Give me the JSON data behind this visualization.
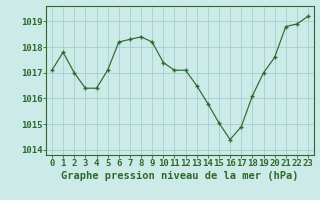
{
  "x": [
    0,
    1,
    2,
    3,
    4,
    5,
    6,
    7,
    8,
    9,
    10,
    11,
    12,
    13,
    14,
    15,
    16,
    17,
    18,
    19,
    20,
    21,
    22,
    23
  ],
  "y": [
    1017.1,
    1017.8,
    1017.0,
    1016.4,
    1016.4,
    1017.1,
    1018.2,
    1018.3,
    1018.4,
    1018.2,
    1017.4,
    1017.1,
    1017.1,
    1016.5,
    1015.8,
    1015.05,
    1014.4,
    1014.9,
    1016.1,
    1017.0,
    1017.6,
    1018.8,
    1018.9,
    1019.2
  ],
  "line_color": "#2d6a2d",
  "marker_color": "#2d6a2d",
  "bg_color": "#cceae7",
  "grid_color": "#99cccc",
  "axis_color": "#2d6a2d",
  "tick_label_color": "#2d6a2d",
  "xlabel": "Graphe pression niveau de la mer (hPa)",
  "ylim": [
    1013.8,
    1019.6
  ],
  "yticks": [
    1014,
    1015,
    1016,
    1017,
    1018,
    1019
  ],
  "xticks": [
    0,
    1,
    2,
    3,
    4,
    5,
    6,
    7,
    8,
    9,
    10,
    11,
    12,
    13,
    14,
    15,
    16,
    17,
    18,
    19,
    20,
    21,
    22,
    23
  ],
  "font_size_xlabel": 7.5,
  "font_size_ticks": 6.5
}
